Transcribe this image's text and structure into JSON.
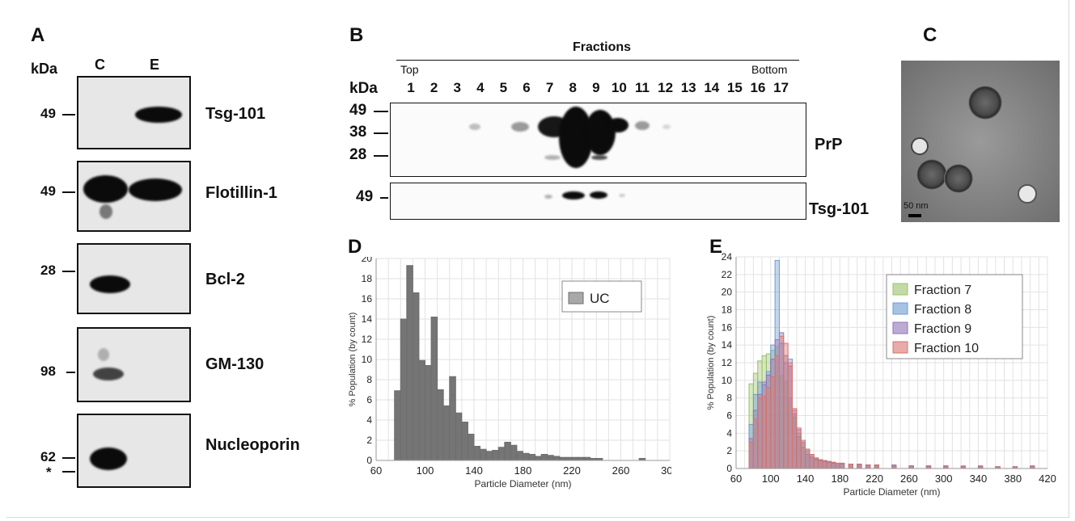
{
  "panelA": {
    "letter": "A",
    "kda_label": "kDa",
    "lanes": [
      "C",
      "E"
    ],
    "blots": [
      {
        "protein": "Tsg-101",
        "markers": [
          "49"
        ]
      },
      {
        "protein": "Flotillin-1",
        "markers": [
          "49"
        ]
      },
      {
        "protein": "Bcl-2",
        "markers": [
          "28"
        ]
      },
      {
        "protein": "GM-130",
        "markers": [
          "98"
        ]
      },
      {
        "protein": "Nucleoporin",
        "markers": [
          "62",
          "*"
        ]
      }
    ]
  },
  "panelB": {
    "letter": "B",
    "header": "Fractions",
    "top_label": "Top",
    "bottom_label": "Bottom",
    "kda_label": "kDa",
    "lanes": [
      "1",
      "2",
      "3",
      "4",
      "5",
      "6",
      "7",
      "8",
      "9",
      "10",
      "11",
      "12",
      "13",
      "14",
      "15",
      "16",
      "17"
    ],
    "blot1_markers": [
      "49",
      "38",
      "28"
    ],
    "blot1_protein": "PrP",
    "blot2_markers": [
      "49"
    ],
    "blot2_protein": "Tsg-101"
  },
  "panelC": {
    "letter": "C",
    "scale_label": "50 nm"
  },
  "panelD": {
    "letter": "D"
  },
  "panelE": {
    "letter": "E"
  },
  "chart_data": [
    {
      "type": "bar",
      "title": "",
      "xlabel": "Particle Diameter (nm)",
      "ylabel": "% Population (by count)",
      "xlim": [
        60,
        300
      ],
      "ylim": [
        0,
        20
      ],
      "xticks": [
        60,
        100,
        140,
        180,
        220,
        260,
        300
      ],
      "yticks": [
        0,
        2,
        4,
        6,
        8,
        10,
        12,
        14,
        16,
        18,
        20
      ],
      "grid": true,
      "legend_position": "top-right",
      "bin_width": 5,
      "x": [
        75,
        80,
        85,
        90,
        95,
        100,
        105,
        110,
        115,
        120,
        125,
        130,
        135,
        140,
        145,
        150,
        155,
        160,
        165,
        170,
        175,
        180,
        185,
        190,
        195,
        200,
        205,
        210,
        215,
        220,
        225,
        230,
        235,
        240,
        275
      ],
      "series": [
        {
          "name": "UC",
          "color": "#6e6e6e",
          "values": [
            6.9,
            14.0,
            19.3,
            16.6,
            9.9,
            9.4,
            14.2,
            7.0,
            5.4,
            8.3,
            4.7,
            3.8,
            2.6,
            1.4,
            1.1,
            0.9,
            1.0,
            1.3,
            1.8,
            1.5,
            0.9,
            0.7,
            0.6,
            0.4,
            0.6,
            0.5,
            0.4,
            0.3,
            0.3,
            0.3,
            0.3,
            0.3,
            0.2,
            0.2,
            0.2
          ]
        }
      ]
    },
    {
      "type": "bar",
      "title": "",
      "xlabel": "Particle Diameter (nm)",
      "ylabel": "% Population (by count)",
      "xlim": [
        60,
        420
      ],
      "ylim": [
        0,
        24
      ],
      "xticks": [
        60,
        100,
        140,
        180,
        220,
        260,
        300,
        340,
        380,
        420
      ],
      "yticks": [
        0,
        2,
        4,
        6,
        8,
        10,
        12,
        14,
        16,
        18,
        20,
        22,
        24
      ],
      "grid": true,
      "legend_position": "top-right",
      "bin_width": 5,
      "x": [
        75,
        80,
        85,
        90,
        95,
        100,
        105,
        110,
        115,
        120,
        125,
        130,
        135,
        140,
        145,
        150,
        155,
        160,
        165,
        170,
        175,
        180,
        190,
        200,
        210,
        220,
        240,
        260,
        280,
        300,
        320,
        340,
        360,
        380,
        400
      ],
      "series": [
        {
          "name": "Fraction 7",
          "color": "#9bc26a",
          "values": [
            9.6,
            10.8,
            12.2,
            12.8,
            13.0,
            13.4,
            13.8,
            10.5,
            9.8,
            8.0,
            5.8,
            4.0,
            2.8,
            2.0,
            1.4,
            1.1,
            0.9,
            0.8,
            0.7,
            0.7,
            0.6,
            0.6,
            0.5,
            0.5,
            0.4,
            0.4,
            0.3,
            0.3,
            0.3,
            0.3,
            0.2,
            0.2,
            0.2,
            0.2,
            0.2
          ]
        },
        {
          "name": "Fraction 8",
          "color": "#6d9bd1",
          "values": [
            5.0,
            8.4,
            9.8,
            9.5,
            11.0,
            14.0,
            23.6,
            14.2,
            12.0,
            12.4,
            6.2,
            3.6,
            2.4,
            1.6,
            1.2,
            1.0,
            0.9,
            0.8,
            0.7,
            0.6,
            0.6,
            0.5,
            0.5,
            0.4,
            0.4,
            0.3,
            0.3,
            0.3,
            0.2,
            0.2,
            0.2,
            0.2,
            0.2,
            0.2,
            0.2
          ]
        },
        {
          "name": "Fraction 9",
          "color": "#8f74b6",
          "values": [
            3.4,
            6.6,
            8.4,
            9.8,
            10.6,
            12.4,
            14.6,
            15.4,
            12.8,
            11.6,
            6.6,
            4.4,
            3.0,
            2.2,
            1.6,
            1.2,
            1.0,
            0.9,
            0.8,
            0.7,
            0.6,
            0.6,
            0.5,
            0.5,
            0.4,
            0.4,
            0.4,
            0.3,
            0.3,
            0.3,
            0.2,
            0.3,
            0.2,
            0.2,
            0.3
          ]
        },
        {
          "name": "Fraction 10",
          "color": "#d8736d",
          "values": [
            3.0,
            5.6,
            8.0,
            8.2,
            9.2,
            10.4,
            12.8,
            15.0,
            14.2,
            12.0,
            6.8,
            4.6,
            3.2,
            2.2,
            1.6,
            1.2,
            1.0,
            0.9,
            0.8,
            0.7,
            0.6,
            0.6,
            0.5,
            0.5,
            0.4,
            0.4,
            0.3,
            0.3,
            0.3,
            0.3,
            0.3,
            0.2,
            0.2,
            0.2,
            0.2
          ]
        }
      ]
    }
  ]
}
